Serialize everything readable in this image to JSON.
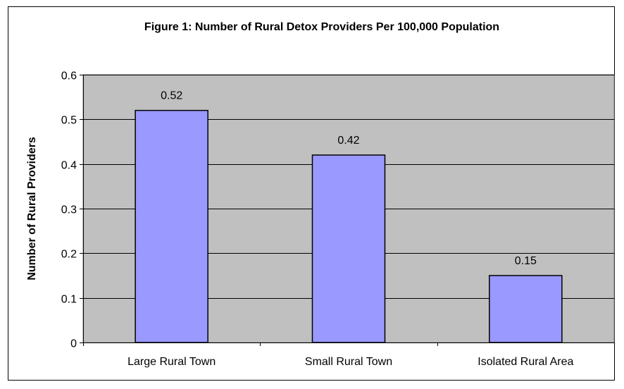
{
  "chart_data": {
    "type": "bar",
    "title": "Figure 1: Number of Rural Detox Providers Per 100,000 Population",
    "xlabel": "",
    "ylabel": "Number of Rural Providers",
    "categories": [
      "Large Rural Town",
      "Small Rural Town",
      "Isolated Rural Area"
    ],
    "values": [
      0.52,
      0.42,
      0.15
    ],
    "data_labels": [
      "0.52",
      "0.42",
      "0.15"
    ],
    "ylim": [
      0,
      0.6
    ],
    "yticks": [
      0,
      0.1,
      0.2,
      0.3,
      0.4,
      0.5,
      0.6
    ],
    "ytick_labels": [
      "0",
      "0.1",
      "0.2",
      "0.3",
      "0.4",
      "0.5",
      "0.6"
    ],
    "grid": true,
    "legend": "none",
    "colors": {
      "bar_fill": "#9999ff",
      "bar_stroke": "#000000",
      "plot_background": "#c0c0c0",
      "gridline": "#000000"
    }
  }
}
